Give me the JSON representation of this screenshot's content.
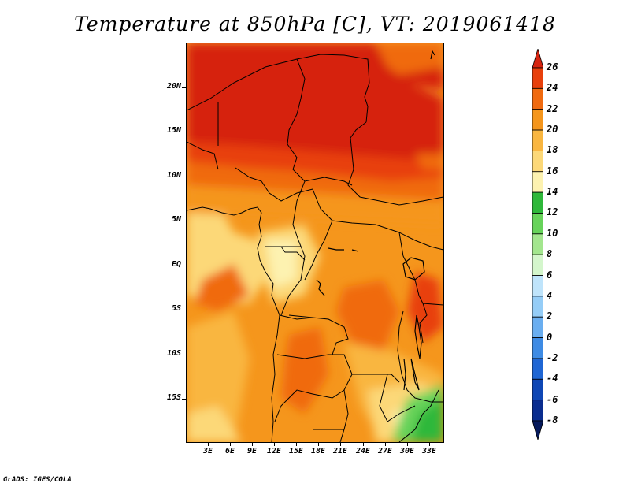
{
  "title": "Temperature at 850hPa [C], VT: 2019061418",
  "credit": "GrADS: IGES/COLA",
  "axes": {
    "y_ticks": [
      "20N",
      "15N",
      "10N",
      "5N",
      "EQ",
      "5S",
      "10S",
      "15S"
    ],
    "x_ticks": [
      "3E",
      "6E",
      "9E",
      "12E",
      "15E",
      "18E",
      "21E",
      "24E",
      "27E",
      "30E",
      "33E"
    ]
  },
  "colorbar": {
    "levels": [
      "26",
      "24",
      "22",
      "20",
      "18",
      "16",
      "14",
      "12",
      "10",
      "8",
      "6",
      "4",
      "2",
      "0",
      "-2",
      "-4",
      "-6",
      "-8"
    ],
    "colors": [
      "#d62410",
      "#e8400c",
      "#f06a10",
      "#f5961c",
      "#f9b640",
      "#fcd878",
      "#fdf2b0",
      "#2fb83a",
      "#67d35a",
      "#a3e68e",
      "#d4f6cc",
      "#bfe4fb",
      "#95cdf7",
      "#6aaef0",
      "#3e8be4",
      "#1f66d4",
      "#0f47b5",
      "#0a2d8f",
      "#061a5c"
    ]
  }
}
